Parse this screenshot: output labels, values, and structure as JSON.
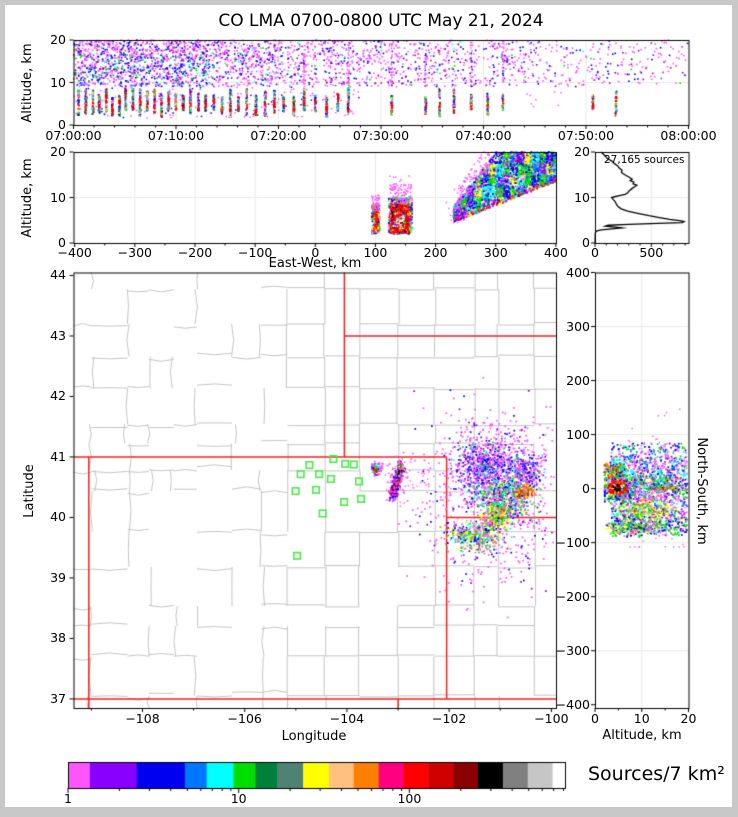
{
  "title": "CO LMA 0700-0800 UTC May 21, 2024",
  "window": {
    "frame_color": "#C8C8C8",
    "canvas_color": "#FFFFFF"
  },
  "palette": {
    "magenta": "#FF55FF",
    "violet": "#8A00FF",
    "blue": "#0000F0",
    "azure": "#0077FF",
    "cyan": "#00FFFF",
    "green": "#00DD00",
    "seagreen": "#00803C",
    "teal": "#4F8272",
    "yellow": "#FFFF00",
    "peach": "#FFC080",
    "orange": "#FF8000",
    "deeppink": "#FF0080",
    "red": "#FF0000",
    "firebrick": "#CF0000",
    "maroon": "#8B0000",
    "black": "#000000",
    "gray": "#808080",
    "silver": "#C6C6C6",
    "white": "#FFFFFF",
    "county_line": "#C4C4C4",
    "state_line": "#EE2222",
    "station_green": "#4CE84C",
    "grid_line": "#E9E9E9"
  },
  "panels": {
    "time_height": {
      "ylabel": "Altitude, km",
      "yticks": [
        {
          "v": 0,
          "label": "0"
        },
        {
          "v": 10,
          "label": "10"
        },
        {
          "v": 20,
          "label": "20"
        }
      ],
      "xticks": [
        {
          "v": 0,
          "label": "07:00:00"
        },
        {
          "v": 10,
          "label": "07:10:00"
        },
        {
          "v": 20,
          "label": "07:20:00"
        },
        {
          "v": 30,
          "label": "07:30:00"
        },
        {
          "v": 40,
          "label": "07:40:00"
        },
        {
          "v": 50,
          "label": "07:50:00"
        },
        {
          "v": 60,
          "label": "08:00:00"
        }
      ]
    },
    "ew_height": {
      "ylabel": "Altitude, km",
      "xlabel": "East-West, km",
      "yticks": [
        {
          "v": 0,
          "label": "0"
        },
        {
          "v": 10,
          "label": "10"
        },
        {
          "v": 20,
          "label": "20"
        }
      ],
      "xticks": [
        {
          "v": -400,
          "label": "−400"
        },
        {
          "v": -300,
          "label": "−300"
        },
        {
          "v": -200,
          "label": "−200"
        },
        {
          "v": -100,
          "label": "−100"
        },
        {
          "v": 0,
          "label": "0"
        },
        {
          "v": 100,
          "label": "100"
        },
        {
          "v": 200,
          "label": "200"
        },
        {
          "v": 300,
          "label": "300"
        },
        {
          "v": 400,
          "label": "400"
        }
      ]
    },
    "histogram": {
      "note": "27,165 sources",
      "yticks": [
        {
          "v": 0,
          "label": "0"
        },
        {
          "v": 10,
          "label": "10"
        },
        {
          "v": 20,
          "label": "20"
        }
      ],
      "xticks": [
        {
          "v": 0,
          "label": "0"
        },
        {
          "v": 500,
          "label": "500"
        }
      ]
    },
    "map": {
      "xlabel": "Longitude",
      "ylabel": "Latitude",
      "yticks": [
        {
          "v": 37,
          "label": "37"
        },
        {
          "v": 38,
          "label": "38"
        },
        {
          "v": 39,
          "label": "39"
        },
        {
          "v": 40,
          "label": "40"
        },
        {
          "v": 41,
          "label": "41"
        },
        {
          "v": 42,
          "label": "42"
        },
        {
          "v": 43,
          "label": "43"
        },
        {
          "v": 44,
          "label": "44"
        }
      ],
      "xticks": [
        {
          "v": -108,
          "label": "−108"
        },
        {
          "v": -106,
          "label": "−106"
        },
        {
          "v": -104,
          "label": "−104"
        },
        {
          "v": -102,
          "label": "−102"
        },
        {
          "v": -100,
          "label": "−100"
        }
      ]
    },
    "ns_height": {
      "xlabel": "Altitude, km",
      "ylabel_right": "North-South, km",
      "xticks": [
        {
          "v": 0,
          "label": "0"
        },
        {
          "v": 10,
          "label": "10"
        },
        {
          "v": 20,
          "label": "20"
        }
      ],
      "yticks": [
        {
          "v": 400,
          "label": "400"
        },
        {
          "v": 300,
          "label": "300"
        },
        {
          "v": 200,
          "label": "200"
        },
        {
          "v": 100,
          "label": "100"
        },
        {
          "v": 0,
          "label": "0"
        },
        {
          "v": -100,
          "label": "−100"
        },
        {
          "v": -200,
          "label": "−200"
        },
        {
          "v": -300,
          "label": "−300"
        },
        {
          "v": -400,
          "label": "−400"
        }
      ]
    }
  },
  "colorbar": {
    "label": "Sources/7 km²",
    "scale": "log",
    "range": [
      1,
      800
    ],
    "xticks": [
      {
        "v": 1,
        "label": "1"
      },
      {
        "v": 10,
        "label": "10"
      },
      {
        "v": 100,
        "label": "100"
      }
    ],
    "segments": [
      {
        "color": "#FF55FF",
        "w": 4.4
      },
      {
        "color": "#8A00FF",
        "w": 9.4
      },
      {
        "color": "#0000F0",
        "w": 9.7
      },
      {
        "color": "#0077FF",
        "w": 4.4
      },
      {
        "color": "#00FFFF",
        "w": 5.4
      },
      {
        "color": "#00DD00",
        "w": 4.4
      },
      {
        "color": "#00803C",
        "w": 4.4
      },
      {
        "color": "#4F8272",
        "w": 5.2
      },
      {
        "color": "#FFFF00",
        "w": 5.2
      },
      {
        "color": "#FFC080",
        "w": 5.0
      },
      {
        "color": "#FF8000",
        "w": 5.0
      },
      {
        "color": "#FF0080",
        "w": 5.0
      },
      {
        "color": "#FF0000",
        "w": 5.0
      },
      {
        "color": "#CF0000",
        "w": 5.0
      },
      {
        "color": "#8B0000",
        "w": 5.0
      },
      {
        "color": "#000000",
        "w": 5.0
      },
      {
        "color": "#808080",
        "w": 5.0
      },
      {
        "color": "#C6C6C6",
        "w": 5.0
      },
      {
        "color": "#FFFFFF",
        "w": 2.5
      }
    ]
  },
  "chart_data": [
    {
      "id": "time_height",
      "type": "scatter",
      "x": "time UTC",
      "y": "altitude km",
      "xrange_minutes": [
        0,
        60
      ],
      "yrange": [
        0,
        20
      ],
      "anvil_cloud": {
        "alt_km": [
          9,
          20
        ],
        "dense_until_min": 13,
        "medium_until_min": 27,
        "colors": [
          "magenta",
          "blue",
          "violet",
          "green",
          "cyan"
        ]
      },
      "flash_streak_minutes": [
        0.5,
        1.2,
        1.9,
        2.5,
        3.2,
        3.8,
        4.5,
        5.1,
        5.8,
        6.5,
        7.2,
        7.9,
        8.6,
        9.3,
        10.0,
        10.7,
        11.4,
        12.2,
        12.9,
        13.7,
        14.5,
        15.3,
        16.1,
        16.9,
        17.8,
        18.7,
        19.6,
        20.5,
        21.5,
        22.5,
        23.6,
        24.7,
        25.8,
        26.8,
        31.05,
        34.37,
        35.7,
        37.13,
        38.8,
        40.42,
        41.9,
        50.68,
        52.93
      ],
      "column_streak_minutes": [
        22.5,
        26.8,
        31.05,
        34.37,
        38.8,
        41.9
      ],
      "streak_alt_km": [
        2,
        9
      ]
    },
    {
      "id": "ew_height",
      "type": "scatter",
      "x": "East-West km",
      "y": "altitude km",
      "xrange": [
        -400,
        400
      ],
      "yrange": [
        0,
        20
      ],
      "clusters": [
        {
          "name": "west-cell",
          "ew_km": [
            94,
            107
          ],
          "alt_km": [
            2,
            8.5
          ],
          "core": "red"
        },
        {
          "name": "main-cell",
          "ew_km": [
            122,
            161
          ],
          "alt_km": [
            2,
            10
          ],
          "core": "white-saturated-red-ring"
        },
        {
          "name": "east-anvil-wedge",
          "ew_km": [
            230,
            400
          ],
          "alt_bottom_km": [
            4.5,
            13.5
          ],
          "alt_top_km": [
            8,
            20
          ]
        }
      ]
    },
    {
      "id": "altitude_histogram",
      "type": "line",
      "note": "27,165 sources",
      "x": "source count",
      "y": "altitude km",
      "xrange": [
        0,
        830
      ],
      "yrange": [
        0,
        20
      ],
      "profile": [
        [
          20,
          55
        ],
        [
          19.5,
          75
        ],
        [
          19,
          95
        ],
        [
          18.5,
          112
        ],
        [
          18,
          150
        ],
        [
          17.5,
          170
        ],
        [
          17,
          200
        ],
        [
          16.5,
          215
        ],
        [
          16,
          240
        ],
        [
          15.5,
          235
        ],
        [
          15,
          265
        ],
        [
          14.5,
          300
        ],
        [
          14,
          330
        ],
        [
          13.7,
          312
        ],
        [
          13.4,
          345
        ],
        [
          13,
          338
        ],
        [
          12.7,
          372
        ],
        [
          12.4,
          355
        ],
        [
          12,
          330
        ],
        [
          11.5,
          305
        ],
        [
          11,
          288
        ],
        [
          10.7,
          268
        ],
        [
          10.4,
          215
        ],
        [
          10,
          148
        ],
        [
          9.6,
          160
        ],
        [
          9.2,
          175
        ],
        [
          8.8,
          185
        ],
        [
          8.4,
          192
        ],
        [
          8,
          205
        ],
        [
          7.5,
          232
        ],
        [
          7,
          290
        ],
        [
          6.5,
          380
        ],
        [
          6,
          480
        ],
        [
          5.6,
          572
        ],
        [
          5.2,
          662
        ],
        [
          4.9,
          752
        ],
        [
          4.7,
          790
        ],
        [
          4.5,
          775
        ],
        [
          4.3,
          555
        ],
        [
          4.1,
          300
        ],
        [
          3.9,
          118
        ],
        [
          3.7,
          92
        ],
        [
          3.5,
          180
        ],
        [
          3.3,
          240
        ],
        [
          3.1,
          148
        ],
        [
          2.9,
          58
        ],
        [
          2.7,
          24
        ],
        [
          2.5,
          8
        ],
        [
          2.2,
          3
        ],
        [
          2,
          2
        ],
        [
          1.5,
          2
        ],
        [
          1,
          1
        ],
        [
          0.5,
          1
        ],
        [
          0,
          1
        ]
      ]
    },
    {
      "id": "plan_map",
      "type": "scatter",
      "x": "Longitude",
      "y": "Latitude",
      "xrange": [
        -109.35,
        -99.91
      ],
      "yrange": [
        36.85,
        44.05
      ],
      "stations_lon_lat": [
        [
          -104.27,
          40.97
        ],
        [
          -104.04,
          40.89
        ],
        [
          -103.87,
          40.88
        ],
        [
          -104.74,
          40.87
        ],
        [
          -104.91,
          40.72
        ],
        [
          -104.55,
          40.72
        ],
        [
          -104.32,
          40.64
        ],
        [
          -105.01,
          40.44
        ],
        [
          -104.61,
          40.46
        ],
        [
          -103.77,
          40.6
        ],
        [
          -104.06,
          40.26
        ],
        [
          -103.73,
          40.31
        ],
        [
          -104.48,
          40.07
        ],
        [
          -104.98,
          39.37
        ]
      ],
      "state_borders": [
        [
          [
            -109.05,
            36.85
          ],
          [
            -109.05,
            41.0
          ]
        ],
        [
          [
            -109.35,
            41.0
          ],
          [
            -102.05,
            41.0
          ]
        ],
        [
          [
            -104.05,
            41.0
          ],
          [
            -104.05,
            44.05
          ]
        ],
        [
          [
            -104.05,
            43.0
          ],
          [
            -99.91,
            43.0
          ]
        ],
        [
          [
            -102.05,
            41.0
          ],
          [
            -102.05,
            37.0
          ]
        ],
        [
          [
            -102.05,
            40.0
          ],
          [
            -99.91,
            40.0
          ]
        ],
        [
          [
            -109.35,
            37.0
          ],
          [
            -99.91,
            37.0
          ]
        ],
        [
          [
            -103.0,
            37.0
          ],
          [
            -103.0,
            36.85
          ]
        ]
      ],
      "clusters": [
        {
          "name": "cell-west",
          "center": [
            -103.43,
            40.8
          ],
          "sigma": [
            0.05,
            0.055
          ],
          "n": 80
        },
        {
          "name": "cell-main",
          "line": [
            [
              -103.12,
              40.36
            ],
            [
              -102.92,
              40.86
            ]
          ],
          "core": "black-red",
          "n": 520
        },
        {
          "name": "anvil-east",
          "lobes": [
            {
              "c": [
                -101.35,
                40.83
              ],
              "s": [
                0.28,
                0.2
              ],
              "n": 500,
              "pal": "cold"
            },
            {
              "c": [
                -100.55,
                40.72
              ],
              "s": [
                0.18,
                0.16
              ],
              "n": 300,
              "pal": "cold"
            },
            {
              "c": [
                -100.95,
                40.32
              ],
              "s": [
                0.3,
                0.18
              ],
              "n": 550,
              "pal": "mixed"
            },
            {
              "c": [
                -100.5,
                40.42
              ],
              "s": [
                0.09,
                0.06
              ],
              "n": 130,
              "pal": "hot"
            },
            {
              "c": [
                -101.05,
                40.02
              ],
              "s": [
                0.13,
                0.09
              ],
              "n": 260,
              "pal": "warm"
            },
            {
              "c": [
                -101.5,
                39.68
              ],
              "s": [
                0.25,
                0.11
              ],
              "n": 380,
              "pal": "warm2"
            },
            {
              "c": [
                -101.05,
                41.15
              ],
              "s": [
                0.4,
                0.22
              ],
              "n": 140,
              "pal": "fringe"
            },
            {
              "c": [
                -101.1,
                40.3
              ],
              "s": [
                0.75,
                0.7
              ],
              "n": 750,
              "pal": "fringe"
            }
          ]
        }
      ]
    },
    {
      "id": "ns_height",
      "type": "scatter",
      "x": "altitude km",
      "y": "North-South km",
      "xrange": [
        0,
        20
      ],
      "yrange": [
        -400,
        400
      ],
      "extent_ns_km": [
        -105,
        145
      ],
      "core": {
        "ns_km": [
          -15,
          20
        ],
        "alt_km": [
          2,
          8.5
        ],
        "colors": "black-red-white"
      },
      "lobes": [
        {
          "name": "north-band",
          "ns": 35,
          "alt": 4,
          "sn": 8,
          "sa": 1.4,
          "n": 170,
          "pal": "nband"
        },
        {
          "name": "red-streak",
          "ns": 0,
          "alt": [
            11,
            17.6
          ],
          "n": 70,
          "pal": "streak"
        },
        {
          "name": "yellow-lobe",
          "ns": -40,
          "alt": 11,
          "sn": 10,
          "sa": 2.6,
          "n": 280,
          "pal": "warm"
        },
        {
          "name": "south-green",
          "ns": -71,
          "alt": 8,
          "sn": 7,
          "sa": 3.0,
          "n": 300,
          "pal": "warm2"
        },
        {
          "name": "mid-green",
          "ns": 10,
          "alt": 13,
          "sn": 11,
          "sa": 2.8,
          "n": 230,
          "pal": "mixed"
        }
      ]
    }
  ]
}
